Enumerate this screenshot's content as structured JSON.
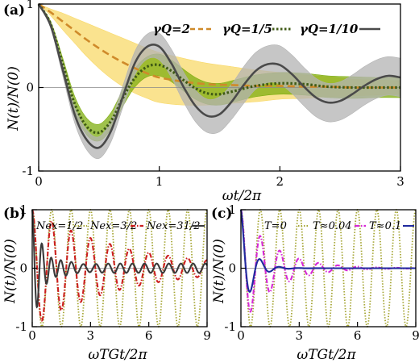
{
  "chart_data": [
    {
      "panel": "(a)",
      "type": "line",
      "xlabel": "ωt/2π",
      "ylabel": "N(t)/N(0)",
      "xlim": [
        0,
        3
      ],
      "ylim": [
        -1,
        1
      ],
      "xticks": [
        "0",
        "1",
        "2",
        "3"
      ],
      "yticks": [
        "-1",
        "0",
        "1"
      ],
      "legend_position": "top-right",
      "series": [
        {
          "name": "γQ=2",
          "style": "dashed",
          "color": "#cf8a2a",
          "band_color": "#f8d96a",
          "x": [
            0,
            0.1,
            0.2,
            0.3,
            0.4,
            0.5,
            0.6,
            0.7,
            0.8,
            0.9,
            1.0,
            1.2,
            1.4,
            1.6,
            1.8,
            2.0,
            2.2,
            2.4,
            2.6,
            2.8,
            3.0
          ],
          "y": [
            1.0,
            0.9,
            0.79,
            0.68,
            0.57,
            0.47,
            0.38,
            0.3,
            0.23,
            0.17,
            0.12,
            0.07,
            0.04,
            0.03,
            0.02,
            0.02,
            0.01,
            0.01,
            0.0,
            0.0,
            0.0
          ],
          "band_halfwidth": [
            0.0,
            0.04,
            0.1,
            0.15,
            0.2,
            0.24,
            0.27,
            0.29,
            0.3,
            0.3,
            0.3,
            0.28,
            0.25,
            0.22,
            0.19,
            0.16,
            0.14,
            0.12,
            0.1,
            0.09,
            0.08
          ]
        },
        {
          "name": "γQ=1/5",
          "style": "dotted",
          "color": "#3f5a15",
          "band_color": "#7fae10",
          "x": [
            0,
            0.1,
            0.2,
            0.3,
            0.4,
            0.5,
            0.6,
            0.7,
            0.8,
            0.9,
            1.0,
            1.1,
            1.2,
            1.3,
            1.4,
            1.5,
            1.6,
            1.8,
            2.0,
            2.2,
            2.4,
            2.6,
            2.8,
            3.0
          ],
          "y": [
            1.0,
            0.76,
            0.28,
            -0.2,
            -0.47,
            -0.54,
            -0.4,
            -0.12,
            0.12,
            0.25,
            0.27,
            0.2,
            0.09,
            -0.01,
            -0.07,
            -0.08,
            -0.05,
            0.02,
            0.05,
            0.04,
            0.01,
            0.0,
            0.0,
            0.0
          ],
          "band_halfwidth": [
            0.0,
            0.03,
            0.07,
            0.09,
            0.1,
            0.1,
            0.1,
            0.1,
            0.11,
            0.12,
            0.13,
            0.13,
            0.13,
            0.13,
            0.13,
            0.13,
            0.13,
            0.13,
            0.13,
            0.13,
            0.13,
            0.13,
            0.12,
            0.12
          ]
        },
        {
          "name": "γQ=1/10",
          "style": "solid",
          "color": "#4a4a4a",
          "band_color": "#b3b3b3",
          "x": [
            0,
            0.1,
            0.2,
            0.3,
            0.4,
            0.5,
            0.6,
            0.7,
            0.8,
            0.9,
            1.0,
            1.1,
            1.2,
            1.3,
            1.4,
            1.5,
            1.6,
            1.7,
            1.8,
            1.9,
            2.0,
            2.1,
            2.2,
            2.3,
            2.4,
            2.5,
            2.6,
            2.7,
            2.8,
            2.9,
            3.0
          ],
          "y": [
            1.0,
            0.74,
            0.21,
            -0.33,
            -0.63,
            -0.72,
            -0.52,
            -0.1,
            0.3,
            0.49,
            0.49,
            0.29,
            0.01,
            -0.22,
            -0.34,
            -0.32,
            -0.17,
            0.03,
            0.2,
            0.28,
            0.27,
            0.16,
            0.01,
            -0.12,
            -0.18,
            -0.16,
            -0.08,
            0.02,
            0.1,
            0.14,
            0.12
          ],
          "band_halfwidth": [
            0.0,
            0.03,
            0.07,
            0.1,
            0.12,
            0.13,
            0.13,
            0.13,
            0.14,
            0.15,
            0.16,
            0.17,
            0.18,
            0.19,
            0.2,
            0.21,
            0.21,
            0.22,
            0.22,
            0.22,
            0.23,
            0.23,
            0.23,
            0.23,
            0.23,
            0.23,
            0.23,
            0.23,
            0.23,
            0.23,
            0.23
          ]
        }
      ]
    },
    {
      "panel": "(b)",
      "type": "line",
      "xlabel": "ωTGt/2π",
      "ylabel": "N(t)/N(0)",
      "xlim": [
        0,
        9
      ],
      "ylim": [
        -1,
        1
      ],
      "xticks": [
        "0",
        "3",
        "6",
        "9"
      ],
      "yticks": [
        "-1",
        "0",
        "1"
      ],
      "legend_position": "top",
      "series": [
        {
          "name": "Nex=1/2",
          "style": "dotted",
          "color": "#a6a635",
          "frequency": 1.0,
          "decay": 0.0
        },
        {
          "name": "Nex=3/2",
          "style": "dashdot",
          "color": "#cc1f1f",
          "frequency": 1.0,
          "decay": 0.22
        },
        {
          "name": "Nex=31/2",
          "style": "solid",
          "color": "#3a3a3a",
          "frequency": 2.0,
          "decay": 1.6,
          "residual": 0.08
        }
      ]
    },
    {
      "panel": "(c)",
      "type": "line",
      "xlabel": "ωTGt/2π",
      "ylabel": "N(t)/N(0)",
      "xlim": [
        0,
        9
      ],
      "ylim": [
        -1,
        1
      ],
      "xticks": [
        "0",
        "3",
        "6",
        "9"
      ],
      "yticks": [
        "-1",
        "0",
        "1"
      ],
      "legend_position": "top",
      "series": [
        {
          "name": "T=0",
          "style": "dotted",
          "color": "#a6a635",
          "frequency": 1.0,
          "decay": 0.0
        },
        {
          "name": "T≈0.04",
          "style": "dashdot",
          "color": "#d628d6",
          "frequency": 1.0,
          "decay": 0.6
        },
        {
          "name": "T≈0.1",
          "style": "solid",
          "color": "#1f2a9e",
          "frequency": 1.0,
          "decay": 1.9
        }
      ]
    }
  ]
}
